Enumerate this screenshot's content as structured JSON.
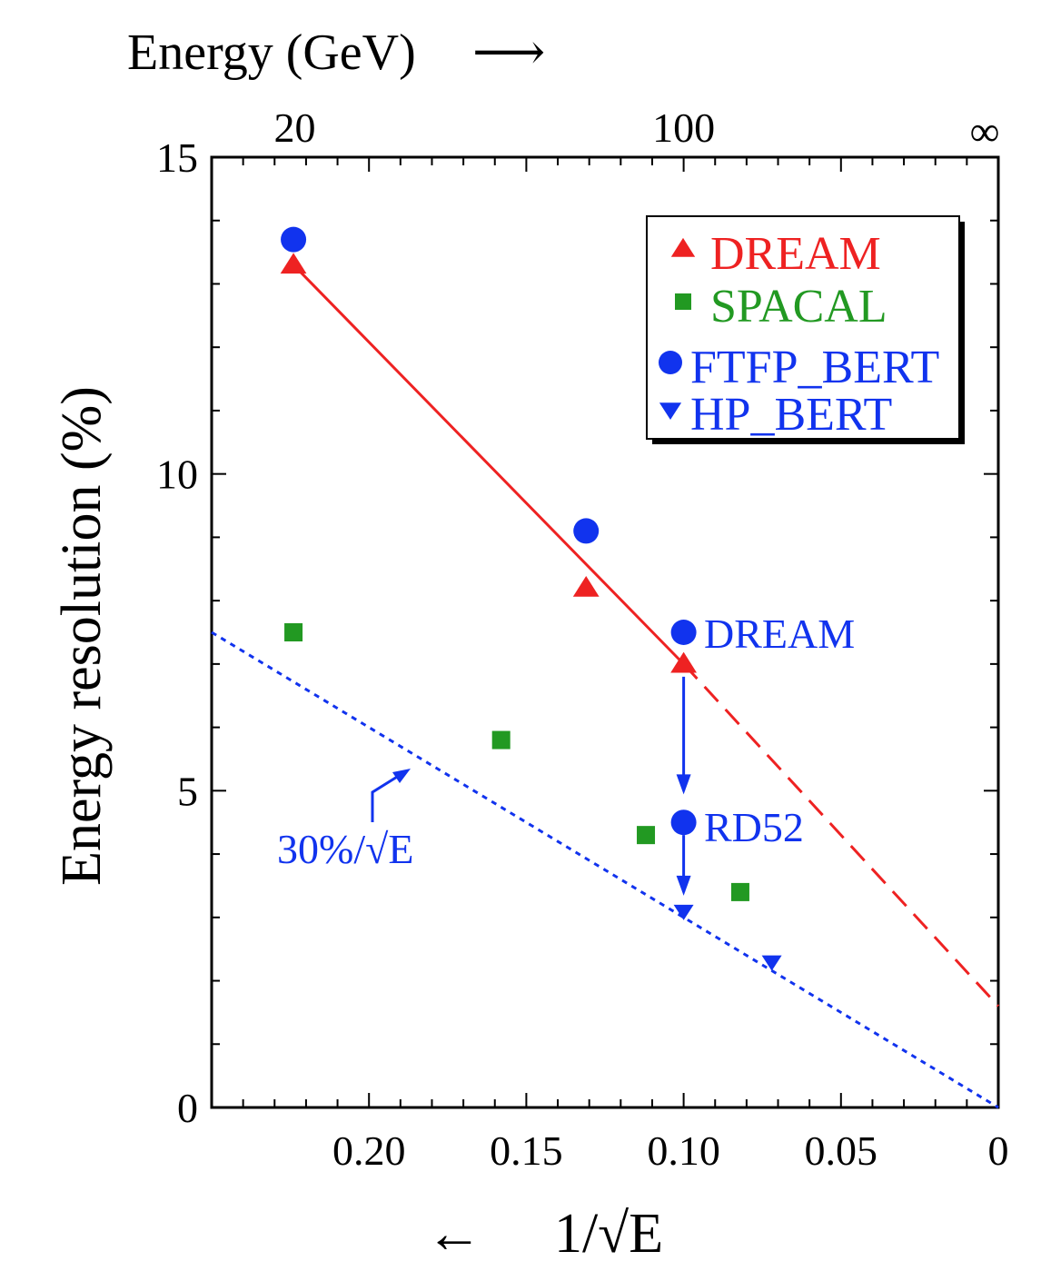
{
  "chart_data": {
    "type": "scatter",
    "xlabel": "1/√E",
    "x_direction_arrow": "←",
    "top_axis_label": "Energy (GeV)",
    "top_axis_arrow": "⟶",
    "ylabel": "Energy resolution (%)",
    "xlim": [
      0.25,
      0
    ],
    "ylim": [
      0,
      15
    ],
    "x_reversed": true,
    "x_ticks": [
      {
        "value": 0.2,
        "label": "0.20"
      },
      {
        "value": 0.15,
        "label": "0.15"
      },
      {
        "value": 0.1,
        "label": "0.10"
      },
      {
        "value": 0.05,
        "label": "0.05"
      },
      {
        "value": 0,
        "label": "0"
      }
    ],
    "y_ticks": [
      {
        "value": 0,
        "label": "0"
      },
      {
        "value": 5,
        "label": "5"
      },
      {
        "value": 10,
        "label": "10"
      },
      {
        "value": 15,
        "label": "15"
      }
    ],
    "top_ticks": [
      {
        "value": 0.2236,
        "label": "20"
      },
      {
        "value": 0.1,
        "label": "100"
      },
      {
        "value": 0,
        "label": "∞"
      }
    ],
    "grid": false,
    "legend_position": "top-right",
    "series": [
      {
        "name": "DREAM",
        "marker": "triangle-up",
        "color": "#ee2222",
        "points": [
          [
            0.224,
            13.3
          ],
          [
            0.131,
            8.2
          ],
          [
            0.1,
            7.0
          ]
        ]
      },
      {
        "name": "SPACAL",
        "marker": "square",
        "color": "#229922",
        "points": [
          [
            0.224,
            7.5
          ],
          [
            0.158,
            5.8
          ],
          [
            0.112,
            4.3
          ],
          [
            0.082,
            3.4
          ]
        ]
      },
      {
        "name": "FTFP_BERT",
        "marker": "circle",
        "color": "#1133ee",
        "points": [
          [
            0.224,
            13.7
          ],
          [
            0.131,
            9.1
          ],
          [
            0.1,
            7.5
          ],
          [
            0.1,
            4.5
          ]
        ]
      },
      {
        "name": "HP_BERT",
        "marker": "triangle-down",
        "color": "#1133ee",
        "points": [
          [
            0.1,
            3.1
          ],
          [
            0.072,
            2.3
          ]
        ]
      }
    ],
    "lines": [
      {
        "style": "solid",
        "color": "#ee2222",
        "from": [
          0.224,
          13.3
        ],
        "to": [
          0.1,
          7.0
        ]
      },
      {
        "style": "dashed",
        "color": "#ee2222",
        "from": [
          0.1,
          7.0
        ],
        "to": [
          0,
          1.6
        ]
      },
      {
        "style": "dotted",
        "color": "#1133ee",
        "from": [
          0.25,
          7.5
        ],
        "to": [
          0,
          0
        ]
      }
    ],
    "annotations": [
      {
        "text": "DREAM",
        "color": "#1133ee"
      },
      {
        "text": "RD52",
        "color": "#1133ee"
      },
      {
        "text": "30%/√E",
        "color": "#1133ee"
      }
    ]
  }
}
